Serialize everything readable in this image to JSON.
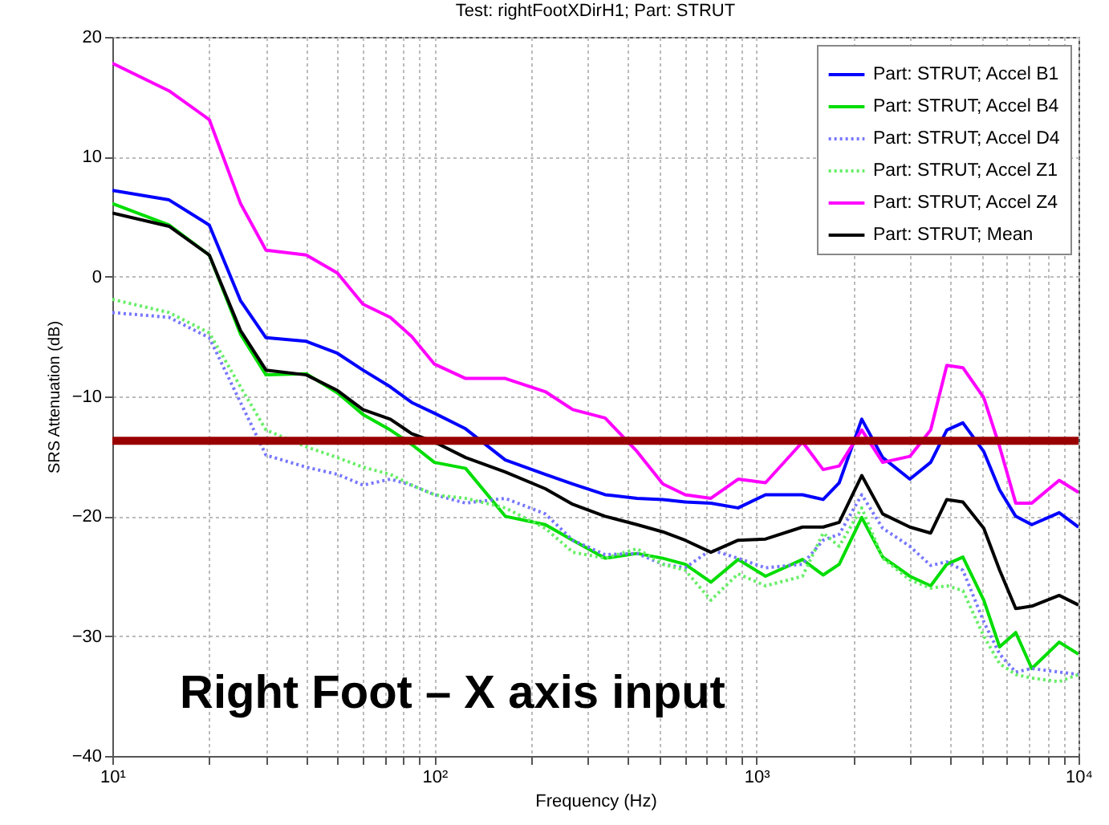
{
  "chart_data": {
    "type": "line",
    "title": "Test: rightFootXDirH1; Part: STRUT",
    "xlabel": "Frequency (Hz)",
    "ylabel": "SRS Attenuation (dB)",
    "x": [
      10,
      15,
      20,
      25,
      30,
      40,
      50,
      60,
      73,
      85,
      100,
      125,
      166,
      221,
      269,
      339,
      426,
      512,
      601,
      722,
      877,
      1067,
      1390,
      1611,
      1807,
      2123,
      2466,
      2995,
      3475,
      3900,
      4375,
      5080,
      5690,
      6383,
      7161,
      8710,
      10000
    ],
    "series": [
      {
        "name": "Part: STRUT; Accel B1",
        "color": "#0000ff",
        "line_style": "solid",
        "values": [
          7.2,
          6.4,
          4.3,
          -2,
          -5.1,
          -5.4,
          -6.4,
          -7.8,
          -9.2,
          -10.5,
          -11.4,
          -12.7,
          -15.3,
          -16.5,
          -17.3,
          -18.2,
          -18.5,
          -18.6,
          -18.8,
          -18.9,
          -19.3,
          -18.2,
          -18.2,
          -18.6,
          -17.2,
          -11.9,
          -15.1,
          -16.9,
          -15.5,
          -12.8,
          -12.2,
          -14.6,
          -17.8,
          -20,
          -20.7,
          -19.7,
          -20.9
        ]
      },
      {
        "name": "Part: STRUT; Accel B4",
        "color": "#00dd00",
        "line_style": "solid",
        "values": [
          6.1,
          4.3,
          1.8,
          -4.8,
          -8.2,
          -8.1,
          -9.7,
          -11.5,
          -12.8,
          -14,
          -15.5,
          -16,
          -20,
          -20.7,
          -22,
          -23.5,
          -23.1,
          -23.5,
          -24,
          -25.5,
          -23.6,
          -25,
          -23.6,
          -24.9,
          -24,
          -20.1,
          -23.4,
          -25,
          -25.8,
          -24,
          -23.4,
          -27,
          -30.9,
          -29.7,
          -32.7,
          -30.5,
          -31.5
        ]
      },
      {
        "name": "Part: STRUT; Accel D4",
        "color": "#7777ff",
        "line_style": "dotted",
        "values": [
          -3,
          -3.4,
          -5.1,
          -10.5,
          -14.9,
          -15.9,
          -16.5,
          -17.4,
          -16.9,
          -17.4,
          -18.2,
          -18.9,
          -18.5,
          -19.8,
          -22,
          -23.2,
          -23.1,
          -24,
          -24.3,
          -22.8,
          -23.5,
          -24.3,
          -24,
          -22,
          -21.5,
          -18.2,
          -21,
          -22.5,
          -24.1,
          -23.8,
          -24.5,
          -28.8,
          -31.5,
          -33,
          -32.7,
          -33,
          -33.2
        ]
      },
      {
        "name": "Part: STRUT; Accel Z1",
        "color": "#66ee66",
        "line_style": "dotted",
        "values": [
          -1.9,
          -3,
          -4.7,
          -9.2,
          -12.8,
          -14.2,
          -15.1,
          -15.9,
          -16.5,
          -17.4,
          -18.2,
          -18.5,
          -19.3,
          -21,
          -23,
          -23.5,
          -22.7,
          -24,
          -24.5,
          -27,
          -24.8,
          -25.8,
          -25,
          -21.4,
          -22.5,
          -19.3,
          -23.5,
          -25.3,
          -26,
          -25.8,
          -26.2,
          -30,
          -32.3,
          -33.2,
          -33.5,
          -33.8,
          -33.2
        ]
      },
      {
        "name": "Part: STRUT; Accel Z4",
        "color": "#ff00ff",
        "line_style": "solid",
        "values": [
          17.8,
          15.5,
          13.1,
          6.1,
          2.2,
          1.8,
          0.3,
          -2.3,
          -3.4,
          -5,
          -7.3,
          -8.5,
          -8.5,
          -9.6,
          -11.1,
          -11.8,
          -14.6,
          -17.3,
          -18.2,
          -18.5,
          -16.9,
          -17.2,
          -13.8,
          -16.1,
          -15.8,
          -12.8,
          -15.5,
          -15,
          -12.8,
          -7.4,
          -7.6,
          -10.1,
          -14.2,
          -18.9,
          -18.9,
          -17,
          -18
        ]
      },
      {
        "name": "Part: STRUT; Mean",
        "color": "#000000",
        "line_style": "solid",
        "values": [
          5.3,
          4.2,
          1.8,
          -4.5,
          -7.8,
          -8.2,
          -9.5,
          -11.1,
          -11.9,
          -13.1,
          -13.8,
          -15.1,
          -16.3,
          -17.7,
          -19,
          -20,
          -20.7,
          -21.3,
          -22,
          -23,
          -22,
          -21.9,
          -20.9,
          -20.9,
          -20.5,
          -16.6,
          -19.8,
          -20.9,
          -21.4,
          -18.6,
          -18.8,
          -21,
          -24.5,
          -27.7,
          -27.5,
          -26.6,
          -27.4
        ]
      }
    ],
    "log": "x",
    "xlim": [
      10,
      10000
    ],
    "xticks": [
      {
        "value": 10,
        "label": "10¹"
      },
      {
        "value": 20,
        "label": null
      },
      {
        "value": 30,
        "label": null
      },
      {
        "value": 40,
        "label": null
      },
      {
        "value": 50,
        "label": null
      },
      {
        "value": 60,
        "label": null
      },
      {
        "value": 70,
        "label": null
      },
      {
        "value": 80,
        "label": null
      },
      {
        "value": 90,
        "label": null
      },
      {
        "value": 100,
        "label": "10²"
      },
      {
        "value": 200,
        "label": null
      },
      {
        "value": 300,
        "label": null
      },
      {
        "value": 400,
        "label": null
      },
      {
        "value": 500,
        "label": null
      },
      {
        "value": 600,
        "label": null
      },
      {
        "value": 700,
        "label": null
      },
      {
        "value": 800,
        "label": null
      },
      {
        "value": 900,
        "label": null
      },
      {
        "value": 1000,
        "label": "10³"
      },
      {
        "value": 2000,
        "label": null
      },
      {
        "value": 3000,
        "label": null
      },
      {
        "value": 4000,
        "label": null
      },
      {
        "value": 5000,
        "label": null
      },
      {
        "value": 6000,
        "label": null
      },
      {
        "value": 7000,
        "label": null
      },
      {
        "value": 8000,
        "label": null
      },
      {
        "value": 9000,
        "label": null
      },
      {
        "value": 10000,
        "label": "10⁴"
      }
    ],
    "ylim": [
      -40,
      20
    ],
    "yticks": [
      -40,
      -30,
      -20,
      -10,
      0,
      10,
      20
    ],
    "grid": true,
    "legend": "top right",
    "ref_lines": [
      {
        "axis": "y",
        "value": -13.7,
        "color": "#990000"
      }
    ],
    "annotations": [
      "Right Foot – X axis input"
    ]
  }
}
